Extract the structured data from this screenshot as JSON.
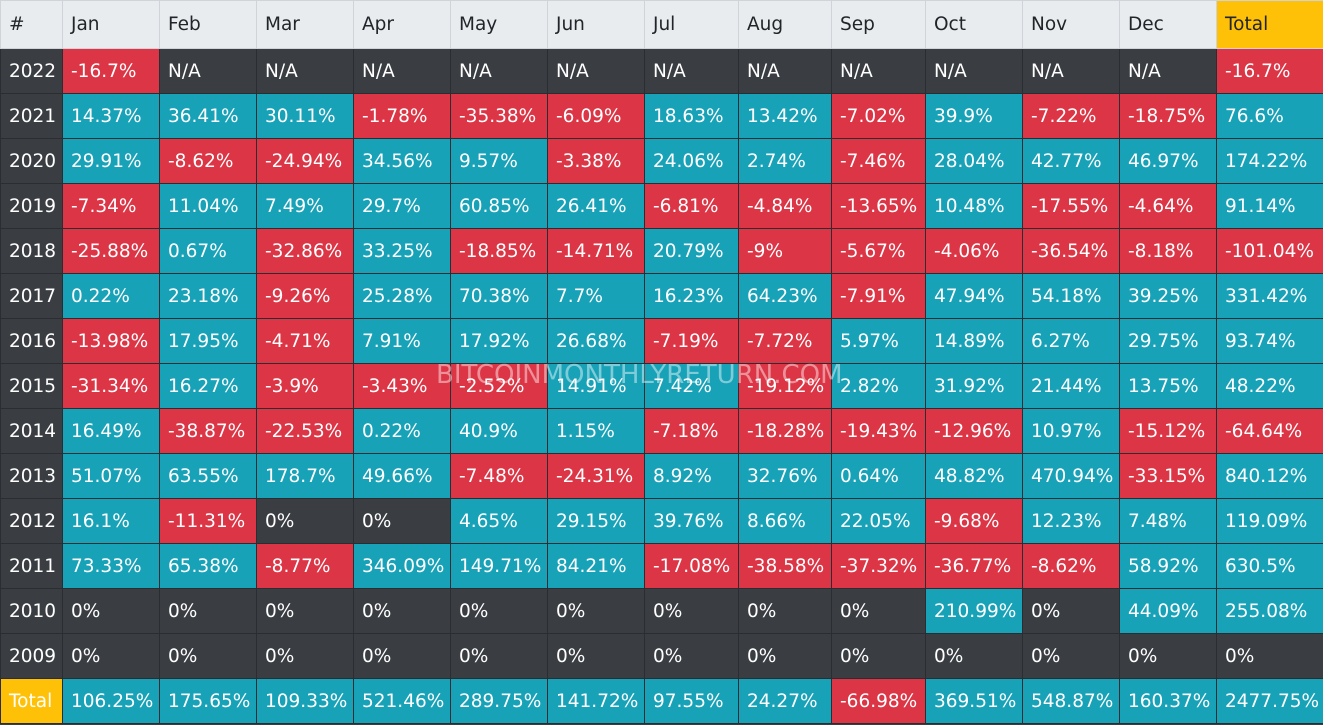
{
  "headers": [
    "#",
    "Jan",
    "Feb",
    "Mar",
    "Apr",
    "May",
    "Jun",
    "Jul",
    "Aug",
    "Sep",
    "Oct",
    "Nov",
    "Dec",
    "Total"
  ],
  "rows": [
    {
      "year": "2022",
      "cells": [
        "-16.7%",
        "N/A",
        "N/A",
        "N/A",
        "N/A",
        "N/A",
        "N/A",
        "N/A",
        "N/A",
        "N/A",
        "N/A",
        "N/A",
        "-16.7%"
      ]
    },
    {
      "year": "2021",
      "cells": [
        "14.37%",
        "36.41%",
        "30.11%",
        "-1.78%",
        "-35.38%",
        "-6.09%",
        "18.63%",
        "13.42%",
        "-7.02%",
        "39.9%",
        "-7.22%",
        "-18.75%",
        "76.6%"
      ]
    },
    {
      "year": "2020",
      "cells": [
        "29.91%",
        "-8.62%",
        "-24.94%",
        "34.56%",
        "9.57%",
        "-3.38%",
        "24.06%",
        "2.74%",
        "-7.46%",
        "28.04%",
        "42.77%",
        "46.97%",
        "174.22%"
      ]
    },
    {
      "year": "2019",
      "cells": [
        "-7.34%",
        "11.04%",
        "7.49%",
        "29.7%",
        "60.85%",
        "26.41%",
        "-6.81%",
        "-4.84%",
        "-13.65%",
        "10.48%",
        "-17.55%",
        "-4.64%",
        "91.14%"
      ]
    },
    {
      "year": "2018",
      "cells": [
        "-25.88%",
        "0.67%",
        "-32.86%",
        "33.25%",
        "-18.85%",
        "-14.71%",
        "20.79%",
        "-9%",
        "-5.67%",
        "-4.06%",
        "-36.54%",
        "-8.18%",
        "-101.04%"
      ]
    },
    {
      "year": "2017",
      "cells": [
        "0.22%",
        "23.18%",
        "-9.26%",
        "25.28%",
        "70.38%",
        "7.7%",
        "16.23%",
        "64.23%",
        "-7.91%",
        "47.94%",
        "54.18%",
        "39.25%",
        "331.42%"
      ]
    },
    {
      "year": "2016",
      "cells": [
        "-13.98%",
        "17.95%",
        "-4.71%",
        "7.91%",
        "17.92%",
        "26.68%",
        "-7.19%",
        "-7.72%",
        "5.97%",
        "14.89%",
        "6.27%",
        "29.75%",
        "93.74%"
      ]
    },
    {
      "year": "2015",
      "cells": [
        "-31.34%",
        "16.27%",
        "-3.9%",
        "-3.43%",
        "-2.52%",
        "14.91%",
        "7.42%",
        "-19.12%",
        "2.82%",
        "31.92%",
        "21.44%",
        "13.75%",
        "48.22%"
      ]
    },
    {
      "year": "2014",
      "cells": [
        "16.49%",
        "-38.87%",
        "-22.53%",
        "0.22%",
        "40.9%",
        "1.15%",
        "-7.18%",
        "-18.28%",
        "-19.43%",
        "-12.96%",
        "10.97%",
        "-15.12%",
        "-64.64%"
      ]
    },
    {
      "year": "2013",
      "cells": [
        "51.07%",
        "63.55%",
        "178.7%",
        "49.66%",
        "-7.48%",
        "-24.31%",
        "8.92%",
        "32.76%",
        "0.64%",
        "48.82%",
        "470.94%",
        "-33.15%",
        "840.12%"
      ]
    },
    {
      "year": "2012",
      "cells": [
        "16.1%",
        "-11.31%",
        "0%",
        "0%",
        "4.65%",
        "29.15%",
        "39.76%",
        "8.66%",
        "22.05%",
        "-9.68%",
        "12.23%",
        "7.48%",
        "119.09%"
      ]
    },
    {
      "year": "2011",
      "cells": [
        "73.33%",
        "65.38%",
        "-8.77%",
        "346.09%",
        "149.71%",
        "84.21%",
        "-17.08%",
        "-38.58%",
        "-37.32%",
        "-36.77%",
        "-8.62%",
        "58.92%",
        "630.5%"
      ]
    },
    {
      "year": "2010",
      "cells": [
        "0%",
        "0%",
        "0%",
        "0%",
        "0%",
        "0%",
        "0%",
        "0%",
        "0%",
        "210.99%",
        "0%",
        "44.09%",
        "255.08%"
      ]
    },
    {
      "year": "2009",
      "cells": [
        "0%",
        "0%",
        "0%",
        "0%",
        "0%",
        "0%",
        "0%",
        "0%",
        "0%",
        "0%",
        "0%",
        "0%",
        "0%"
      ]
    }
  ],
  "total_row": {
    "label": "Total",
    "cells": [
      "106.25%",
      "175.65%",
      "109.33%",
      "521.46%",
      "289.75%",
      "141.72%",
      "97.55%",
      "24.27%",
      "-66.98%",
      "369.51%",
      "548.87%",
      "160.37%",
      "2477.75%"
    ]
  },
  "watermark": "BITCOINMONTHLYRETURN.COM",
  "colors": {
    "positive": "#17a2b8",
    "negative": "#dc3545",
    "neutral": "#3a3d42",
    "header_bg": "#e9ecef",
    "total_accent": "#ffc107"
  }
}
